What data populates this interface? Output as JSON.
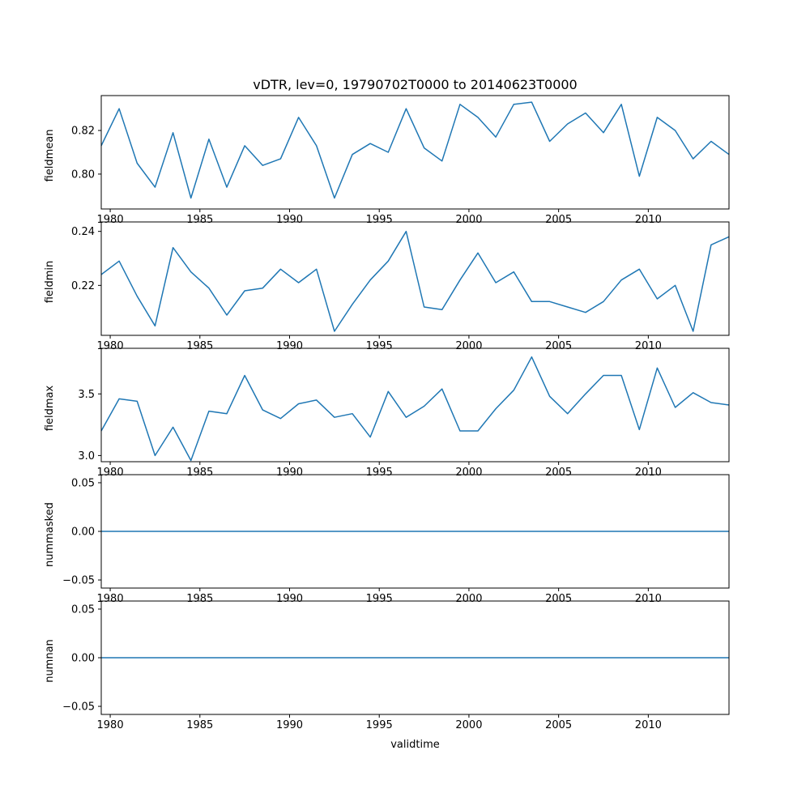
{
  "figure": {
    "title": "vDTR, lev=0, 19790702T0000 to 20140623T0000",
    "xlabel": "validtime"
  },
  "chart_data": {
    "type": "line",
    "title": "vDTR, lev=0, 19790702T0000 to 20140623T0000",
    "xlabel": "validtime",
    "line_color": "#1f77b4",
    "background_color": "#ffffff",
    "grid": false,
    "legend": false,
    "x_years": [
      1979,
      1980,
      1981,
      1982,
      1983,
      1984,
      1985,
      1986,
      1987,
      1988,
      1989,
      1990,
      1991,
      1992,
      1993,
      1994,
      1995,
      1996,
      1997,
      1998,
      1999,
      2000,
      2001,
      2002,
      2003,
      2004,
      2005,
      2006,
      2007,
      2008,
      2009,
      2010,
      2011,
      2012,
      2013,
      2014
    ],
    "xlim": [
      1979.5,
      2014.5
    ],
    "xticks": [
      1980,
      1985,
      1990,
      1995,
      2000,
      2005,
      2010
    ],
    "subplots": [
      {
        "ylabel": "fieldmean",
        "ylim": [
          0.784,
          0.836
        ],
        "yticks": [
          0.8,
          0.82
        ],
        "ytick_labels": [
          "0.80",
          "0.82"
        ],
        "values": [
          0.813,
          0.83,
          0.805,
          0.794,
          0.819,
          0.789,
          0.816,
          0.794,
          0.813,
          0.804,
          0.807,
          0.826,
          0.813,
          0.789,
          0.809,
          0.814,
          0.81,
          0.83,
          0.812,
          0.806,
          0.832,
          0.826,
          0.817,
          0.832,
          0.833,
          0.815,
          0.823,
          0.828,
          0.819,
          0.832,
          0.799,
          0.826,
          0.82,
          0.807,
          0.815,
          0.809
        ]
      },
      {
        "ylabel": "fieldmin",
        "ylim": [
          0.2015,
          0.2435
        ],
        "yticks": [
          0.22,
          0.24
        ],
        "ytick_labels": [
          "0.22",
          "0.24"
        ],
        "values": [
          0.224,
          0.229,
          0.216,
          0.205,
          0.234,
          0.225,
          0.219,
          0.209,
          0.218,
          0.219,
          0.226,
          0.221,
          0.226,
          0.203,
          0.213,
          0.222,
          0.229,
          0.24,
          0.212,
          0.211,
          0.222,
          0.232,
          0.221,
          0.225,
          0.214,
          0.214,
          0.212,
          0.21,
          0.214,
          0.222,
          0.226,
          0.215,
          0.22,
          0.203,
          0.235,
          0.238
        ]
      },
      {
        "ylabel": "fieldmax",
        "ylim": [
          2.95,
          3.87
        ],
        "yticks": [
          3.0,
          3.5
        ],
        "ytick_labels": [
          "3.0",
          "3.5"
        ],
        "values": [
          3.2,
          3.46,
          3.44,
          3.0,
          3.23,
          2.96,
          3.36,
          3.34,
          3.65,
          3.37,
          3.3,
          3.42,
          3.45,
          3.31,
          3.34,
          3.15,
          3.52,
          3.31,
          3.4,
          3.54,
          3.2,
          3.2,
          3.38,
          3.53,
          3.8,
          3.48,
          3.34,
          3.5,
          3.65,
          3.65,
          3.21,
          3.71,
          3.39,
          3.51,
          3.43,
          3.41
        ]
      },
      {
        "ylabel": "nummasked",
        "ylim": [
          -0.0583,
          0.0583
        ],
        "yticks": [
          -0.05,
          0.0,
          0.05
        ],
        "ytick_labels": [
          "−0.05",
          "0.00",
          "0.05"
        ],
        "values": [
          0,
          0,
          0,
          0,
          0,
          0,
          0,
          0,
          0,
          0,
          0,
          0,
          0,
          0,
          0,
          0,
          0,
          0,
          0,
          0,
          0,
          0,
          0,
          0,
          0,
          0,
          0,
          0,
          0,
          0,
          0,
          0,
          0,
          0,
          0,
          0
        ]
      },
      {
        "ylabel": "numnan",
        "ylim": [
          -0.0583,
          0.0583
        ],
        "yticks": [
          -0.05,
          0.0,
          0.05
        ],
        "ytick_labels": [
          "−0.05",
          "0.00",
          "0.05"
        ],
        "values": [
          0,
          0,
          0,
          0,
          0,
          0,
          0,
          0,
          0,
          0,
          0,
          0,
          0,
          0,
          0,
          0,
          0,
          0,
          0,
          0,
          0,
          0,
          0,
          0,
          0,
          0,
          0,
          0,
          0,
          0,
          0,
          0,
          0,
          0,
          0,
          0
        ]
      }
    ]
  }
}
